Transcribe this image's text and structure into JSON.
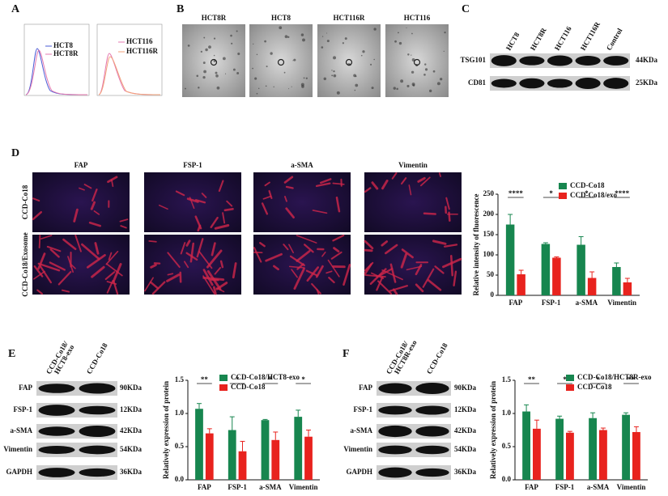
{
  "panels": {
    "A": {
      "label": "A",
      "legend_left": [
        "HCT8",
        "HCT8R"
      ],
      "legend_right": [
        "HCT116",
        "HCT116R"
      ]
    },
    "B": {
      "label": "B",
      "images": [
        "HCT8R",
        "HCT8",
        "HCT116R",
        "HCT116"
      ]
    },
    "C": {
      "label": "C",
      "lanes": [
        "HCT8",
        "HCT8R",
        "HCT116",
        "HCT116R",
        "Control"
      ],
      "rows": [
        {
          "protein": "TSG101",
          "size": "44KDa"
        },
        {
          "protein": "CD81",
          "size": "25KDa"
        }
      ]
    },
    "D": {
      "label": "D",
      "columns": [
        "FAP",
        "FSP-1",
        "a-SMA",
        "Vimentin"
      ],
      "rows": [
        "CCD-Co18",
        "CCD-Co18/Exosome"
      ]
    },
    "E": {
      "label": "E",
      "lanes": [
        [
          "CCD-Co18/",
          "HCT8-exo"
        ],
        [
          "CCD-Co18"
        ]
      ],
      "rows": [
        {
          "protein": "FAP",
          "size": "90KDa"
        },
        {
          "protein": "FSP-1",
          "size": "12KDa"
        },
        {
          "protein": "a-SMA",
          "size": "42KDa"
        },
        {
          "protein": "Vimentin",
          "size": "54KDa"
        },
        {
          "protein": "GAPDH",
          "size": "36KDa"
        }
      ]
    },
    "F": {
      "label": "F",
      "lanes": [
        [
          "CCD-Co18/",
          "HCT8R-exo"
        ],
        [
          "CCD-Co18"
        ]
      ],
      "rows": [
        {
          "protein": "FAP",
          "size": "90KDa"
        },
        {
          "protein": "FSP-1",
          "size": "12KDa"
        },
        {
          "protein": "a-SMA",
          "size": "42KDa"
        },
        {
          "protein": "Vimentin",
          "size": "54KDa"
        },
        {
          "protein": "GAPDH",
          "size": "36KDa"
        }
      ]
    }
  },
  "chart_data": [
    {
      "type": "bar",
      "y_label": "Relative intensity of fluorescence",
      "categories": [
        "FAP",
        "FSP-1",
        "a-SMA",
        "Vimentin"
      ],
      "series": [
        {
          "name": "CCD-Co18",
          "color": "#17864f",
          "values": [
            175,
            127,
            125,
            70
          ],
          "errors": [
            25,
            3,
            20,
            10
          ]
        },
        {
          "name": "CCD-Co18/exo",
          "color": "#e8231e",
          "values": [
            52,
            93,
            43,
            32
          ],
          "errors": [
            10,
            2,
            15,
            10
          ]
        }
      ],
      "significance": [
        "****",
        "*",
        "*",
        "****"
      ],
      "ylim": [
        0,
        250
      ],
      "yticks": [
        0,
        50,
        100,
        150,
        200,
        250
      ]
    },
    {
      "type": "bar",
      "y_label": "Relatively expression of protein",
      "categories": [
        "FAP",
        "FSP-1",
        "a-SMA",
        "Vimentin"
      ],
      "series": [
        {
          "name": "CCD-Co18/HCT8-exo",
          "color": "#17864f",
          "values": [
            1.07,
            0.75,
            0.9,
            0.95
          ],
          "errors": [
            0.08,
            0.2,
            0.01,
            0.1
          ]
        },
        {
          "name": "CCD-Co18",
          "color": "#e8231e",
          "values": [
            0.7,
            0.43,
            0.6,
            0.65
          ],
          "errors": [
            0.07,
            0.15,
            0.12,
            0.1
          ]
        }
      ],
      "significance": [
        "**",
        "*",
        "*",
        "*"
      ],
      "ylim": [
        0,
        1.5
      ],
      "yticks": [
        {
          "value": 0,
          "label": "0.0"
        },
        {
          "value": 0.5,
          "label": "0.5"
        },
        {
          "value": 1,
          "label": "1.0"
        },
        {
          "value": 1.5,
          "label": "1.5"
        }
      ]
    },
    {
      "type": "bar",
      "y_label": "Relatively expression of protein",
      "categories": [
        "FAP",
        "FSP-1",
        "a-SMA",
        "Vimentin"
      ],
      "series": [
        {
          "name": "CCD-Co18/HCT8R-exo",
          "color": "#17864f",
          "values": [
            1.03,
            0.92,
            0.93,
            0.98
          ],
          "errors": [
            0.1,
            0.04,
            0.08,
            0.03
          ]
        },
        {
          "name": "CCD-Co18",
          "color": "#e8231e",
          "values": [
            0.77,
            0.71,
            0.75,
            0.72
          ],
          "errors": [
            0.13,
            0.02,
            0.03,
            0.08
          ]
        }
      ],
      "significance": [
        "**",
        "*",
        "*",
        "**"
      ],
      "ylim": [
        0,
        1.5
      ],
      "yticks": [
        {
          "value": 0,
          "label": "0.0"
        },
        {
          "value": 0.5,
          "label": "0.5"
        },
        {
          "value": 1,
          "label": "1.0"
        },
        {
          "value": 1.5,
          "label": "1.5"
        }
      ]
    }
  ]
}
